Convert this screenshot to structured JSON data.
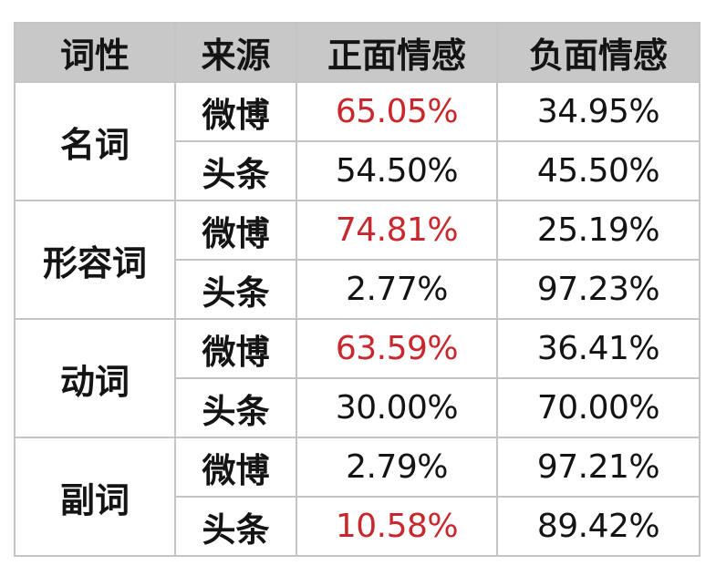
{
  "headers": {
    "pos": "词性",
    "source": "来源",
    "positive": "正面情感",
    "negative": "负面情感"
  },
  "colors": {
    "header_bg": "#c8c8c8",
    "border": "#c4c4c4",
    "highlight_text": "#c8282d",
    "text": "#141414"
  },
  "groups": [
    {
      "pos": "名词",
      "rows": [
        {
          "source": "微博",
          "positive": "65.05%",
          "negative": "34.95%",
          "positive_highlight": true
        },
        {
          "source": "头条",
          "positive": "54.50%",
          "negative": "45.50%",
          "positive_highlight": false
        }
      ]
    },
    {
      "pos": "形容词",
      "rows": [
        {
          "source": "微博",
          "positive": "74.81%",
          "negative": "25.19%",
          "positive_highlight": true
        },
        {
          "source": "头条",
          "positive": "2.77%",
          "negative": "97.23%",
          "positive_highlight": false
        }
      ]
    },
    {
      "pos": "动词",
      "rows": [
        {
          "source": "微博",
          "positive": "63.59%",
          "negative": "36.41%",
          "positive_highlight": true
        },
        {
          "source": "头条",
          "positive": "30.00%",
          "negative": "70.00%",
          "positive_highlight": false
        }
      ]
    },
    {
      "pos": "副词",
      "rows": [
        {
          "source": "微博",
          "positive": "2.79%",
          "negative": "97.21%",
          "positive_highlight": false
        },
        {
          "source": "头条",
          "positive": "10.58%",
          "negative": "89.42%",
          "positive_highlight": true
        }
      ]
    }
  ]
}
